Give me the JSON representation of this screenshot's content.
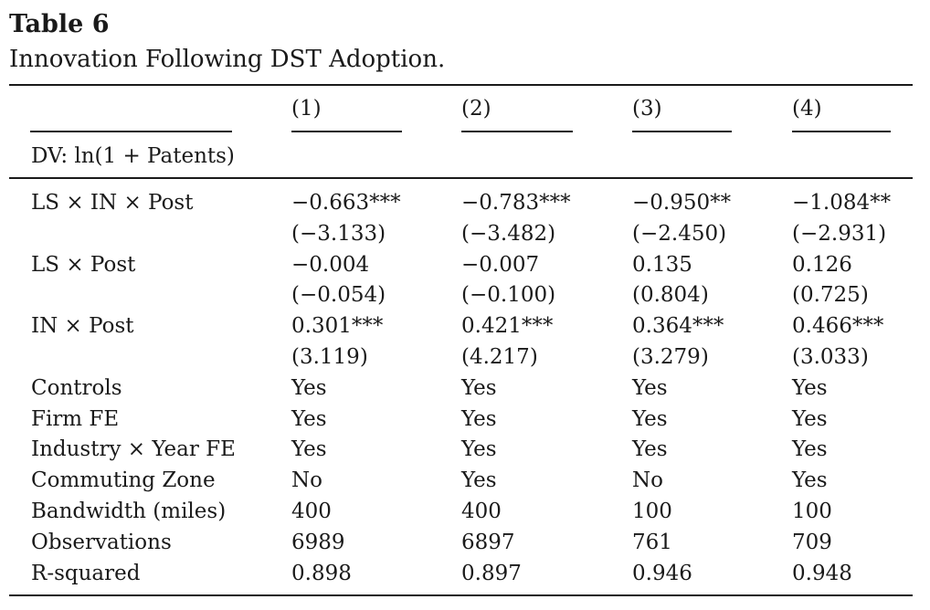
{
  "table": {
    "number": "Table 6",
    "caption": "Innovation Following DST Adoption.",
    "columns": [
      "(1)",
      "(2)",
      "(3)",
      "(4)"
    ],
    "dv_label": "DV: ln(1 + Patents)",
    "rows": [
      {
        "label": "LS × IN × Post",
        "values": [
          "−0.663***",
          "−0.783***",
          "−0.950**",
          "−1.084**"
        ]
      },
      {
        "label": "",
        "values": [
          "(−3.133)",
          "(−3.482)",
          "(−2.450)",
          "(−2.931)"
        ]
      },
      {
        "label": "LS × Post",
        "values": [
          "−0.004",
          "−0.007",
          "0.135",
          "0.126"
        ]
      },
      {
        "label": "",
        "values": [
          "(−0.054)",
          "(−0.100)",
          "(0.804)",
          "(0.725)"
        ]
      },
      {
        "label": "IN × Post",
        "values": [
          "0.301***",
          "0.421***",
          "0.364***",
          "0.466***"
        ]
      },
      {
        "label": "",
        "values": [
          "(3.119)",
          "(4.217)",
          "(3.279)",
          "(3.033)"
        ]
      },
      {
        "label": "Controls",
        "values": [
          "Yes",
          "Yes",
          "Yes",
          "Yes"
        ]
      },
      {
        "label": "Firm FE",
        "values": [
          "Yes",
          "Yes",
          "Yes",
          "Yes"
        ]
      },
      {
        "label": "Industry × Year FE",
        "values": [
          "Yes",
          "Yes",
          "Yes",
          "Yes"
        ]
      },
      {
        "label": "Commuting Zone",
        "values": [
          "No",
          "Yes",
          "No",
          "Yes"
        ]
      },
      {
        "label": "Bandwidth (miles)",
        "values": [
          "400",
          "400",
          "100",
          "100"
        ]
      },
      {
        "label": "Observations",
        "values": [
          "6989",
          "6897",
          "761",
          "709"
        ]
      },
      {
        "label": "R-squared",
        "values": [
          "0.898",
          "0.897",
          "0.946",
          "0.948"
        ]
      }
    ]
  }
}
